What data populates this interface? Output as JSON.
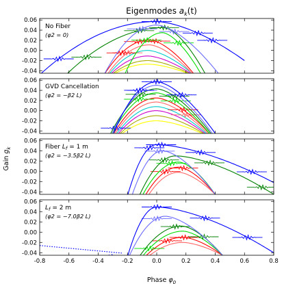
{
  "chart_data": {
    "type": "line",
    "title": "Eigenmodes a_k(t)",
    "title_parts": {
      "main": "Eigenmodes ",
      "var": "a",
      "sub": "k",
      "arg": "(t)"
    },
    "xlabel": "Phase φ0",
    "xlabel_parts": {
      "main": "Phase ",
      "var": "φ",
      "sub": "0"
    },
    "ylabel": "Gain g_k",
    "ylabel_parts": {
      "main": "Gain ",
      "var": "g",
      "sub": "k"
    },
    "xlim": [
      -0.8,
      0.8
    ],
    "xticks": [
      "-0.8",
      "-0.6",
      "-0.4",
      "-0.2",
      "0.0",
      "0.2",
      "0.4",
      "0.6",
      "0.8"
    ],
    "ylim": [
      -0.045,
      0.063
    ],
    "yticks": [
      "0.06",
      "0.04",
      "0.02",
      "0.00",
      "-0.02",
      "-0.04"
    ],
    "grid": false,
    "mode_colors": [
      "#0000ff",
      "#6a6aff",
      "#008000",
      "#00dd00",
      "#ff0000",
      "#ff6666",
      "#00cccc",
      "#cc00cc",
      "#aaaa00",
      "#ffff00"
    ],
    "panels": [
      {
        "label": "No Fiber",
        "condition": "(φ2 = 0)",
        "modes": [
          {
            "color": "#0000ff",
            "x0": -0.8,
            "x1": 0.6,
            "peak_x": 0.0,
            "peak": 0.057,
            "end": -0.02,
            "cross_x": [
              -0.67,
              0.0,
              0.28,
              0.38
            ]
          },
          {
            "color": "#6a6aff",
            "x0": -0.36,
            "x1": 0.42,
            "peak_x": 0.0,
            "peak": 0.05,
            "end": -0.045,
            "cross_x": [
              -0.1,
              0.12
            ]
          },
          {
            "color": "#008000",
            "x0": -0.62,
            "x1": 0.33,
            "peak_x": 0.05,
            "peak": 0.045,
            "end": -0.045,
            "cross_x": [
              -0.48,
              -0.12,
              0.05
            ]
          },
          {
            "color": "#00dd00",
            "x0": -0.22,
            "x1": 0.3,
            "peak_x": 0.04,
            "peak": 0.035,
            "end": -0.045,
            "cross_x": [
              -0.07,
              0.15
            ]
          },
          {
            "color": "#ff0000",
            "x0": -0.36,
            "x1": 0.25,
            "peak_x": -0.05,
            "peak": 0.021,
            "end": -0.045,
            "cross_x": [
              -0.24,
              -0.12,
              -0.01
            ]
          },
          {
            "color": "#ff6666",
            "x0": -0.34,
            "x1": 0.24,
            "peak_x": -0.05,
            "peak": 0.011,
            "end": -0.045,
            "cross_x": [
              -0.2
            ]
          },
          {
            "color": "#00cccc",
            "x0": -0.33,
            "x1": 0.24,
            "peak_x": -0.06,
            "peak": 0.0,
            "end": -0.045,
            "cross_x": []
          },
          {
            "color": "#cc00cc",
            "x0": -0.32,
            "x1": 0.23,
            "peak_x": -0.06,
            "peak": -0.011,
            "end": -0.045,
            "cross_x": []
          },
          {
            "color": "#aaaa00",
            "x0": -0.31,
            "x1": 0.22,
            "peak_x": -0.06,
            "peak": -0.02,
            "end": -0.045,
            "cross_x": []
          },
          {
            "color": "#ffff00",
            "x0": -0.3,
            "x1": 0.21,
            "peak_x": -0.06,
            "peak": -0.027,
            "end": -0.045,
            "cross_x": []
          }
        ]
      },
      {
        "label": "GVD Cancellation",
        "condition": "(φ2 = −β2 L)",
        "modes": [
          {
            "color": "#0000ff",
            "x0": -0.3,
            "x1": 0.4,
            "peak_x": 0.0,
            "peak": 0.057,
            "end": -0.045,
            "cross_x": [
              -0.28,
              -0.12,
              0.0,
              0.17
            ]
          },
          {
            "color": "#6a6aff",
            "x0": -0.31,
            "x1": 0.38,
            "peak_x": 0.0,
            "peak": 0.05,
            "end": -0.045,
            "cross_x": [
              -0.1
            ]
          },
          {
            "color": "#008000",
            "x0": -0.32,
            "x1": 0.37,
            "peak_x": 0.0,
            "peak": 0.043,
            "end": -0.045,
            "cross_x": [
              -0.11,
              0.12
            ]
          },
          {
            "color": "#00dd00",
            "x0": -0.31,
            "x1": 0.36,
            "peak_x": 0.0,
            "peak": 0.035,
            "end": -0.045,
            "cross_x": [
              -0.12,
              0.13
            ]
          },
          {
            "color": "#ff0000",
            "x0": -0.3,
            "x1": 0.36,
            "peak_x": 0.0,
            "peak": 0.025,
            "end": -0.045,
            "cross_x": [
              0.18
            ]
          },
          {
            "color": "#ff6666",
            "x0": -0.29,
            "x1": 0.35,
            "peak_x": 0.0,
            "peak": 0.017,
            "end": -0.045,
            "cross_x": [
              0.2
            ]
          },
          {
            "color": "#00cccc",
            "x0": -0.28,
            "x1": 0.34,
            "peak_x": 0.0,
            "peak": 0.008,
            "end": -0.045,
            "cross_x": []
          },
          {
            "color": "#cc00cc",
            "x0": -0.27,
            "x1": 0.33,
            "peak_x": 0.0,
            "peak": 0.0,
            "end": -0.045,
            "cross_x": []
          },
          {
            "color": "#aaaa00",
            "x0": -0.26,
            "x1": 0.32,
            "peak_x": 0.0,
            "peak": -0.01,
            "end": -0.045,
            "cross_x": []
          },
          {
            "color": "#ffff00",
            "x0": -0.25,
            "x1": 0.31,
            "peak_x": 0.0,
            "peak": -0.02,
            "end": -0.045,
            "cross_x": []
          }
        ]
      },
      {
        "label": "Fiber L_f = 1 m",
        "label_parts": {
          "main": "Fiber ",
          "var": "L",
          "sub": "f",
          "rest": " = 1 m"
        },
        "condition": "(φ2 = −3.5β2 L)",
        "modes": [
          {
            "color": "#0000ff",
            "x0": -0.2,
            "x1": 0.8,
            "peak_x": 0.0,
            "peak": 0.052,
            "end": -0.022,
            "cross_x": [
              -0.05,
              0.03,
              0.3,
              0.65
            ]
          },
          {
            "color": "#6a6aff",
            "x0": -0.17,
            "x1": 0.4,
            "peak_x": 0.04,
            "peak": 0.04,
            "end": -0.045,
            "cross_x": [
              0.02
            ]
          },
          {
            "color": "#008000",
            "x0": -0.12,
            "x1": 0.8,
            "peak_x": 0.13,
            "peak": 0.03,
            "end": -0.045,
            "cross_x": [
              0.05,
              0.36,
              0.72
            ]
          },
          {
            "color": "#00dd00",
            "x0": -0.1,
            "x1": 0.4,
            "peak_x": 0.15,
            "peak": 0.018,
            "end": -0.045,
            "cross_x": [
              0.1
            ]
          },
          {
            "color": "#ff0000",
            "x0": -0.08,
            "x1": 0.4,
            "peak_x": 0.15,
            "peak": 0.008,
            "end": -0.045,
            "cross_x": [
              0.06,
              0.18
            ]
          },
          {
            "color": "#ff6666",
            "x0": -0.06,
            "x1": 0.4,
            "peak_x": 0.15,
            "peak": -0.002,
            "end": -0.045,
            "cross_x": []
          }
        ]
      },
      {
        "label": "L_f = 2 m",
        "label_parts": {
          "main": "",
          "var": "L",
          "sub": "f",
          "rest": " = 2 m"
        },
        "condition": "(φ2 = −7.0β2 L)",
        "modes": [
          {
            "color": "#0000ff",
            "x0": -0.2,
            "x1": 0.8,
            "peak_x": 0.0,
            "peak": 0.049,
            "end": -0.04,
            "cross_x": [
              -0.31,
              0.0,
              0.33,
              0.62
            ]
          },
          {
            "color": "#6a6aff",
            "x0": -0.19,
            "x1": 0.45,
            "peak_x": 0.06,
            "peak": 0.031,
            "end": -0.045,
            "cross_x": [
              0.0
            ]
          },
          {
            "color": "#008000",
            "x0": -0.12,
            "x1": 0.45,
            "peak_x": 0.17,
            "peak": 0.012,
            "end": -0.045,
            "cross_x": [
              0.13,
              0.32
            ]
          },
          {
            "color": "#00dd00",
            "x0": -0.1,
            "x1": 0.45,
            "peak_x": 0.18,
            "peak": 0.002,
            "end": -0.045,
            "cross_x": [
              -0.05
            ]
          },
          {
            "color": "#ff0000",
            "x0": -0.08,
            "x1": 0.45,
            "peak_x": 0.18,
            "peak": -0.01,
            "end": -0.045,
            "cross_x": [
              0.07,
              0.19
            ]
          },
          {
            "color": "#ff6666",
            "x0": -0.06,
            "x1": 0.45,
            "peak_x": 0.18,
            "peak": -0.02,
            "end": -0.045,
            "cross_x": []
          }
        ],
        "dotted_line": {
          "color": "#0000ff",
          "x": [
            -0.8,
            -0.23
          ],
          "y": [
            -0.026,
            -0.041
          ]
        }
      }
    ]
  }
}
